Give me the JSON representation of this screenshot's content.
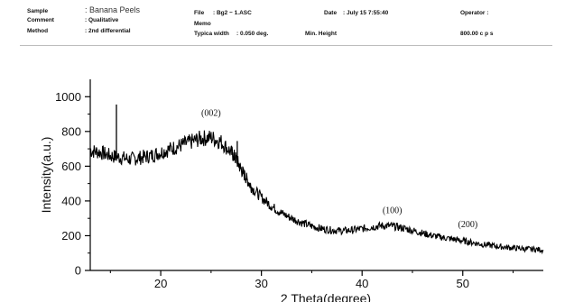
{
  "header": {
    "sample_label": "Sample",
    "sample_value": ": Banana Peels",
    "comment_label": "Comment",
    "comment_value": ": Qualitative",
    "method_label": "Method",
    "method_value": ": 2nd differential",
    "file_label": "File",
    "file_value": ": Bg2 ~ 1.ASC",
    "memo_label": "Memo",
    "typical_width_label": "Typica width",
    "typical_width_value": ": 0.050 deg.",
    "min_height_label": "Min. Height",
    "date_label": "Date",
    "date_value": ": July 15  7:55:40",
    "operator_label": "Operator :",
    "cps_value": "800.00 c p s"
  },
  "chart_data": {
    "type": "line",
    "title": "",
    "xlabel": "2 Theta(degree)",
    "ylabel": "Intensity(a.u.)",
    "xlim": [
      13,
      58
    ],
    "ylim": [
      0,
      1100
    ],
    "xticks": [
      20,
      30,
      40,
      50
    ],
    "yticks": [
      0,
      200,
      400,
      600,
      800,
      1000
    ],
    "xtick_labels": [
      "20",
      "30",
      "40",
      "50"
    ],
    "ytick_labels": [
      "0",
      "200",
      "400",
      "600",
      "800",
      "1000"
    ],
    "grid": false,
    "line_color": "#000000",
    "series": [
      {
        "x": [
          13.0,
          14.0,
          15.0,
          16.0,
          17.0,
          18.0,
          19.0,
          20.0,
          21.0,
          22.0,
          23.0,
          24.0,
          25.0,
          26.0,
          27.0,
          27.5,
          28.0,
          28.5,
          29.0,
          30.0,
          31.0,
          32.0,
          33.0,
          34.0,
          35.0,
          36.0,
          37.0,
          38.0,
          39.0,
          40.0,
          41.0,
          42.0,
          43.0,
          44.0,
          45.0,
          46.0,
          47.0,
          48.0,
          49.0,
          50.0,
          51.0,
          52.0,
          53.0,
          54.0,
          55.0,
          56.0,
          57.0,
          58.0
        ],
        "y": [
          690,
          680,
          660,
          650,
          640,
          650,
          660,
          680,
          700,
          720,
          740,
          760,
          765,
          740,
          680,
          640,
          580,
          530,
          480,
          420,
          370,
          330,
          300,
          275,
          255,
          240,
          232,
          228,
          232,
          240,
          250,
          258,
          255,
          245,
          230,
          215,
          200,
          190,
          180,
          170,
          160,
          150,
          142,
          135,
          130,
          125,
          122,
          118
        ]
      }
    ],
    "spikes": [
      {
        "x": 15.6,
        "y": 955
      },
      {
        "x": 27.6,
        "y": 745
      }
    ],
    "annotations": [
      {
        "text": "(002)",
        "x": 25.0,
        "y": 890
      },
      {
        "text": "(100)",
        "x": 43.0,
        "y": 330
      },
      {
        "text": "(200)",
        "x": 50.5,
        "y": 250
      }
    ]
  }
}
